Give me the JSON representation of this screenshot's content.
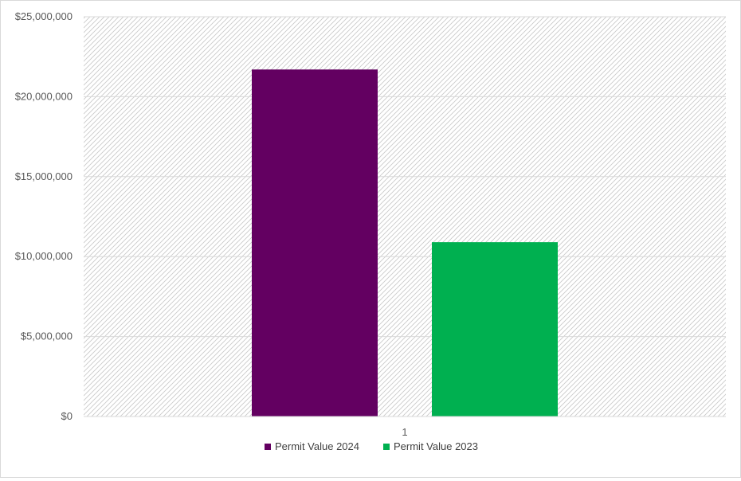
{
  "chart_data": {
    "type": "bar",
    "categories": [
      "1"
    ],
    "series": [
      {
        "name": "Permit Value 2024",
        "values": [
          21700000
        ],
        "color": "#630061"
      },
      {
        "name": "Permit Value 2023",
        "values": [
          10900000
        ],
        "color": "#00b050"
      }
    ],
    "title": "",
    "xlabel": "",
    "ylabel": "",
    "ylim": [
      0,
      25000000
    ],
    "yticks": [
      "$0",
      "$5,000,000",
      "$10,000,000",
      "$15,000,000",
      "$20,000,000",
      "$25,000,000"
    ],
    "grid": true,
    "legend_position": "bottom",
    "plot_background": "diagonal-hatch"
  }
}
